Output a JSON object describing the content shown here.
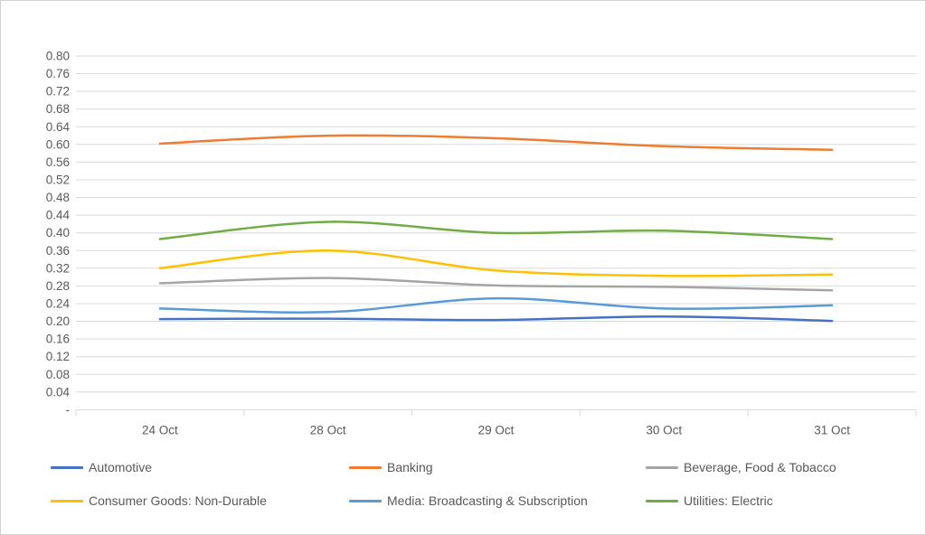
{
  "colors": {
    "background": "#ffffff",
    "frame_border": "#d2d2d2",
    "gridline": "#d9d9d9",
    "axis_line": "#d9d9d9",
    "axis_text": "#595959",
    "legend_text": "#595959"
  },
  "chart_data": {
    "type": "line",
    "smoothed": true,
    "grid": true,
    "legend_position": "bottom",
    "categories": [
      "24 Oct",
      "28 Oct",
      "29 Oct",
      "30 Oct",
      "31 Oct"
    ],
    "series": [
      {
        "name": "Automotive",
        "color": "#4472C4",
        "values": [
          0.205,
          0.206,
          0.203,
          0.211,
          0.201
        ]
      },
      {
        "name": "Banking",
        "color": "#ED7D31",
        "values": [
          0.602,
          0.62,
          0.614,
          0.596,
          0.588
        ]
      },
      {
        "name": "Beverage, Food & Tobacco",
        "color": "#A5A5A5",
        "values": [
          0.286,
          0.298,
          0.281,
          0.278,
          0.27
        ]
      },
      {
        "name": "Consumer Goods: Non-Durable",
        "color": "#FFC000",
        "values": [
          0.32,
          0.36,
          0.315,
          0.303,
          0.306
        ]
      },
      {
        "name": "Media: Broadcasting & Subscription",
        "color": "#5B9BD5",
        "values": [
          0.229,
          0.221,
          0.252,
          0.229,
          0.236
        ]
      },
      {
        "name": "Utilities: Electric",
        "color": "#70AD47",
        "values": [
          0.386,
          0.425,
          0.4,
          0.405,
          0.386
        ]
      }
    ],
    "y_axis": {
      "min": 0,
      "max": 0.8,
      "step": 0.04,
      "tick_labels": [
        "0.80",
        "0.76",
        "0.72",
        "0.68",
        "0.64",
        "0.60",
        "0.56",
        "0.52",
        "0.48",
        "0.44",
        "0.40",
        "0.36",
        "0.32",
        "0.28",
        "0.24",
        "0.20",
        "0.16",
        "0.12",
        "0.08",
        "0.04",
        "-"
      ]
    }
  }
}
